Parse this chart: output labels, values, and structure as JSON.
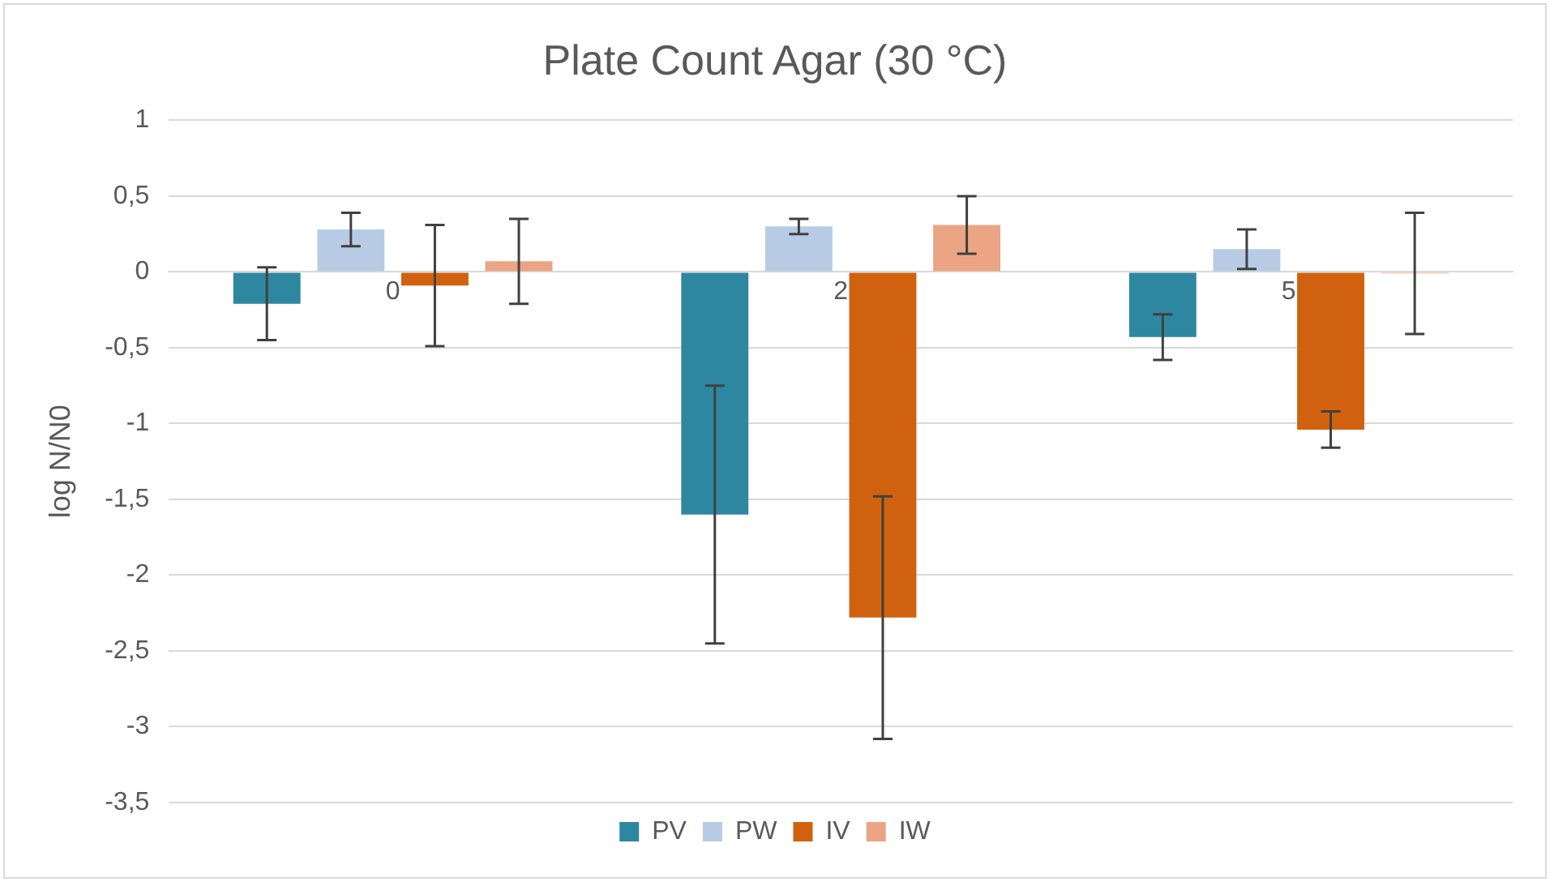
{
  "chart_data": {
    "type": "bar",
    "title": "Plate Count Agar (30 °C)",
    "ylabel": "log N/N0",
    "categories": [
      "0",
      "2",
      "5"
    ],
    "series": [
      {
        "name": "PV",
        "color": "#2e87a0",
        "values": [
          -0.21,
          -1.6,
          -0.43
        ],
        "errors": [
          0.24,
          0.85,
          0.15
        ]
      },
      {
        "name": "PW",
        "color": "#b7cce4",
        "values": [
          0.28,
          0.3,
          0.15
        ],
        "errors": [
          0.11,
          0.05,
          0.13
        ]
      },
      {
        "name": "IV",
        "color": "#d0620f",
        "values": [
          -0.09,
          -2.28,
          -1.04
        ],
        "errors": [
          0.4,
          0.8,
          0.12
        ]
      },
      {
        "name": "IW",
        "color": "#eba584",
        "values": [
          0.07,
          0.31,
          -0.01
        ],
        "errors": [
          0.28,
          0.19,
          0.4
        ]
      }
    ],
    "ylim": [
      -3.5,
      1
    ],
    "yticks": [
      1,
      {
        "value": 0.5,
        "label": "0,5"
      },
      0,
      {
        "value": -0.5,
        "label": "-0,5"
      },
      -1,
      {
        "value": -1.5,
        "label": "-1,5"
      },
      -2,
      {
        "value": -2.5,
        "label": "-2,5"
      },
      -3,
      {
        "value": -3.5,
        "label": "-3,5"
      }
    ],
    "grid": "y",
    "legend": "bottom"
  }
}
